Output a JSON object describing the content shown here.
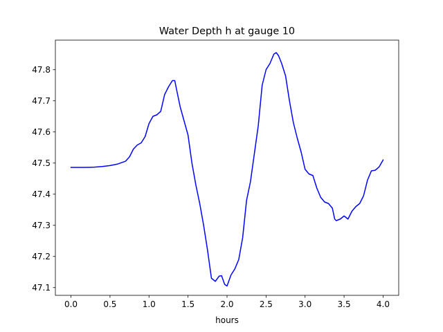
{
  "chart_data": {
    "type": "line",
    "title": "Water Depth h at gauge 10",
    "xlabel": "hours",
    "ylabel": "",
    "xlim": [
      -0.2,
      4.2
    ],
    "ylim": [
      47.075,
      47.895
    ],
    "xticks": [
      0.0,
      0.5,
      1.0,
      1.5,
      2.0,
      2.5,
      3.0,
      3.5,
      4.0
    ],
    "xtick_labels": [
      "0.0",
      "0.5",
      "1.0",
      "1.5",
      "2.0",
      "2.5",
      "3.0",
      "3.5",
      "4.0"
    ],
    "yticks": [
      47.1,
      47.2,
      47.3,
      47.4,
      47.5,
      47.6,
      47.7,
      47.8
    ],
    "ytick_labels": [
      "47.1",
      "47.2",
      "47.3",
      "47.4",
      "47.5",
      "47.6",
      "47.7",
      "47.8"
    ],
    "grid": false,
    "series": [
      {
        "color": "#0000ff",
        "x": [
          0.0,
          0.2,
          0.3,
          0.4,
          0.5,
          0.6,
          0.7,
          0.75,
          0.8,
          0.85,
          0.9,
          0.95,
          1.0,
          1.05,
          1.1,
          1.15,
          1.2,
          1.25,
          1.3,
          1.33,
          1.35,
          1.4,
          1.5,
          1.55,
          1.6,
          1.65,
          1.7,
          1.75,
          1.8,
          1.85,
          1.9,
          1.93,
          1.97,
          2.0,
          2.05,
          2.1,
          2.15,
          2.2,
          2.25,
          2.3,
          2.35,
          2.4,
          2.45,
          2.5,
          2.55,
          2.6,
          2.63,
          2.66,
          2.7,
          2.75,
          2.8,
          2.85,
          2.9,
          2.95,
          3.0,
          3.05,
          3.1,
          3.15,
          3.2,
          3.25,
          3.3,
          3.35,
          3.38,
          3.4,
          3.45,
          3.5,
          3.55,
          3.6,
          3.65,
          3.7,
          3.75,
          3.8,
          3.85,
          3.9,
          3.95,
          4.0
        ],
        "y": [
          47.486,
          47.486,
          47.487,
          47.489,
          47.492,
          47.497,
          47.506,
          47.52,
          47.545,
          47.558,
          47.565,
          47.585,
          47.627,
          47.65,
          47.655,
          47.666,
          47.72,
          47.745,
          47.765,
          47.765,
          47.74,
          47.68,
          47.59,
          47.5,
          47.43,
          47.37,
          47.3,
          47.22,
          47.13,
          47.12,
          47.137,
          47.138,
          47.11,
          47.105,
          47.14,
          47.16,
          47.19,
          47.26,
          47.38,
          47.44,
          47.53,
          47.62,
          47.75,
          47.8,
          47.82,
          47.85,
          47.855,
          47.845,
          47.82,
          47.78,
          47.7,
          47.63,
          47.58,
          47.535,
          47.48,
          47.465,
          47.46,
          47.42,
          47.39,
          47.375,
          47.37,
          47.355,
          47.32,
          47.315,
          47.32,
          47.33,
          47.32,
          47.345,
          47.36,
          47.37,
          47.395,
          47.445,
          47.475,
          47.477,
          47.488,
          47.51
        ]
      }
    ]
  }
}
